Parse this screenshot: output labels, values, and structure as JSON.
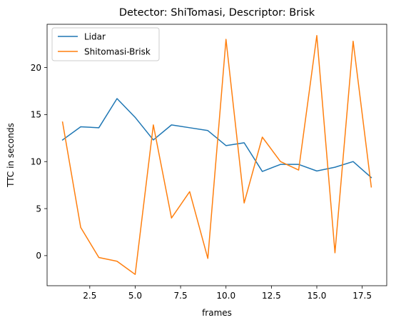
{
  "chart_data": {
    "type": "line",
    "title": "Detector: ShiTomasi, Descriptor: Brisk",
    "xlabel": "frames",
    "ylabel": "TTC in seconds",
    "xlim": [
      0.15,
      18.85
    ],
    "ylim": [
      -3.2,
      24.6
    ],
    "xticks": [
      2.5,
      5.0,
      7.5,
      10.0,
      12.5,
      15.0,
      17.5
    ],
    "xtick_labels": [
      "2.5",
      "5.0",
      "7.5",
      "10.0",
      "12.5",
      "15.0",
      "17.5"
    ],
    "yticks": [
      0,
      5,
      10,
      15,
      20
    ],
    "ytick_labels": [
      "0",
      "5",
      "10",
      "15",
      "20"
    ],
    "grid": false,
    "legend_position": "top-left",
    "x": [
      1,
      2,
      3,
      4,
      5,
      6,
      7,
      8,
      9,
      10,
      11,
      12,
      13,
      14,
      15,
      16,
      17,
      18
    ],
    "series": [
      {
        "name": "Lidar",
        "color": "#1f77b4",
        "values": [
          12.3,
          13.7,
          13.6,
          16.7,
          14.7,
          12.3,
          13.9,
          13.6,
          13.3,
          11.7,
          12.0,
          8.95,
          9.7,
          9.7,
          9.0,
          9.4,
          10.0,
          8.3
        ]
      },
      {
        "name": "Shitomasi-Brisk",
        "color": "#ff7f0e",
        "values": [
          14.2,
          3.0,
          -0.2,
          -0.6,
          -2.0,
          13.9,
          4.0,
          6.8,
          -0.3,
          23.0,
          5.6,
          12.6,
          10.0,
          9.1,
          23.4,
          0.3,
          22.8,
          7.3
        ]
      }
    ]
  }
}
